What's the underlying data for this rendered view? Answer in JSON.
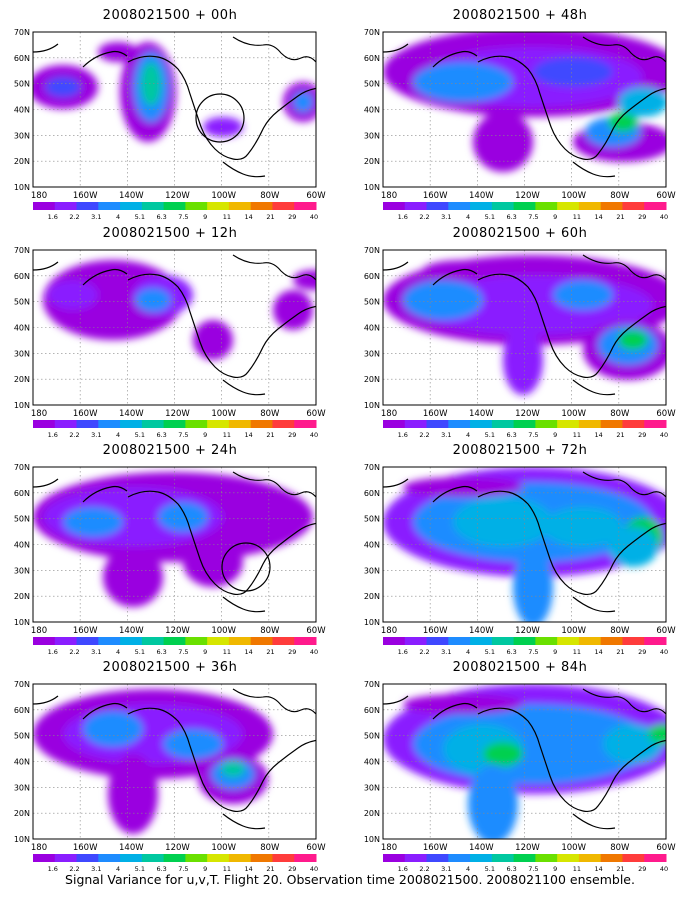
{
  "color_scale": {
    "labels": [
      "1.6",
      "2.2",
      "3.1",
      "4",
      "5.1",
      "6.3",
      "7.5",
      "9",
      "11",
      "14",
      "21",
      "29",
      "40"
    ],
    "colors": [
      "#9a00e0",
      "#8a1eff",
      "#3f48ff",
      "#1e8cff",
      "#00b0e6",
      "#00c8a0",
      "#00d050",
      "#6ae000",
      "#d6e600",
      "#f0b800",
      "#f07800",
      "#ff3c3c",
      "#ff1a8c"
    ]
  },
  "axes": {
    "lat_labels": [
      "70N",
      "60N",
      "50N",
      "40N",
      "30N",
      "20N",
      "10N"
    ],
    "lon_labels": [
      "180",
      "160W",
      "140W",
      "120W",
      "100W",
      "80W",
      "60W"
    ]
  },
  "panels": [
    {
      "title": "2008021500 + 00h",
      "circle": true
    },
    {
      "title": "2008021500 + 48h",
      "circle": false
    },
    {
      "title": "2008021500 + 12h",
      "circle": false
    },
    {
      "title": "2008021500 + 60h",
      "circle": false
    },
    {
      "title": "2008021500 + 24h",
      "circle": true
    },
    {
      "title": "2008021500 + 72h",
      "circle": false
    },
    {
      "title": "2008021500 + 36h",
      "circle": false
    },
    {
      "title": "2008021500 + 84h",
      "circle": false
    }
  ],
  "footer": "Signal Variance for u,v,T. Flight 20. Observation time 2008021500. 2008021100 ensemble."
}
